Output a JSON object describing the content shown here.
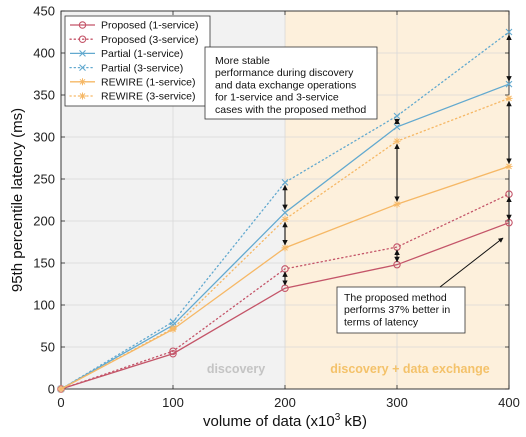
{
  "chart_data": {
    "type": "line",
    "xlabel": "volume of data (x10",
    "xlabel_sup": "3",
    "xlabel_suffix": " kB)",
    "ylabel": "95th percentile latency (ms)",
    "x": [
      0,
      100,
      200,
      300,
      400
    ],
    "xlim": [
      0,
      400
    ],
    "ylim": [
      0,
      450
    ],
    "xticks": [
      "0",
      "100",
      "200",
      "300",
      "400"
    ],
    "yticks": [
      "0",
      "50",
      "100",
      "150",
      "200",
      "250",
      "300",
      "350",
      "400",
      "450"
    ],
    "grid": true,
    "legend_position": "top-left",
    "regions": [
      {
        "label": "discovery",
        "x_range": [
          0,
          200
        ],
        "color": "#f2f2f2",
        "text_color": "#c4c4c4"
      },
      {
        "label": "discovery + data exchange",
        "x_range": [
          200,
          400
        ],
        "color": "#fdf0dc",
        "text_color": "#f4c26a"
      }
    ],
    "series": [
      {
        "name": "Proposed (1-service)",
        "values": [
          0,
          42,
          120,
          148,
          198
        ],
        "color": "#c45569",
        "dash": "solid",
        "marker": "circle"
      },
      {
        "name": "Proposed (3-service)",
        "values": [
          0,
          45,
          143,
          169,
          232
        ],
        "color": "#c45569",
        "dash": "dotted",
        "marker": "circle"
      },
      {
        "name": "Partial (1-service)",
        "values": [
          0,
          76,
          210,
          312,
          363
        ],
        "color": "#62a9cf",
        "dash": "solid",
        "marker": "x"
      },
      {
        "name": "Partial (3-service)",
        "values": [
          0,
          80,
          246,
          325,
          425
        ],
        "color": "#62a9cf",
        "dash": "dotted",
        "marker": "x"
      },
      {
        "name": "REWIRE (1-service)",
        "values": [
          0,
          71,
          168,
          220,
          265
        ],
        "color": "#f6b866",
        "dash": "solid",
        "marker": "star"
      },
      {
        "name": "REWIRE (3-service)",
        "values": [
          0,
          72,
          202,
          295,
          346
        ],
        "color": "#f6b866",
        "dash": "dotted",
        "marker": "star"
      }
    ],
    "annotations": [
      {
        "text": [
          "More stable",
          "performance during discovery",
          "and data exchange operations",
          "for 1-service and 3-service",
          "cases with the proposed method"
        ]
      },
      {
        "text": [
          "The proposed method",
          "performs 37%  better in",
          "terms of latency"
        ]
      }
    ]
  }
}
